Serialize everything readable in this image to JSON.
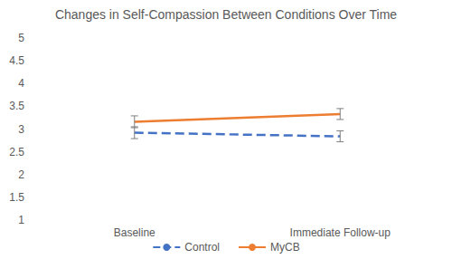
{
  "chart_data": {
    "type": "line",
    "title": "Changes in Self-Compassion Between Conditions Over Time",
    "categories": [
      "Baseline",
      "Immediate Follow-up"
    ],
    "series": [
      {
        "name": "Control",
        "color": "#4472c4",
        "line_style": "dashed",
        "values": [
          2.92,
          2.84
        ],
        "errors": [
          0.13,
          0.12
        ]
      },
      {
        "name": "MyCB",
        "color": "#ed7d31",
        "line_style": "solid",
        "values": [
          3.16,
          3.33
        ],
        "errors": [
          0.13,
          0.12
        ]
      }
    ],
    "ylim": [
      1,
      5
    ],
    "yticks": [
      1,
      1.5,
      2,
      2.5,
      3,
      3.5,
      4,
      4.5,
      5
    ],
    "grid": false,
    "legend": "bottom"
  }
}
